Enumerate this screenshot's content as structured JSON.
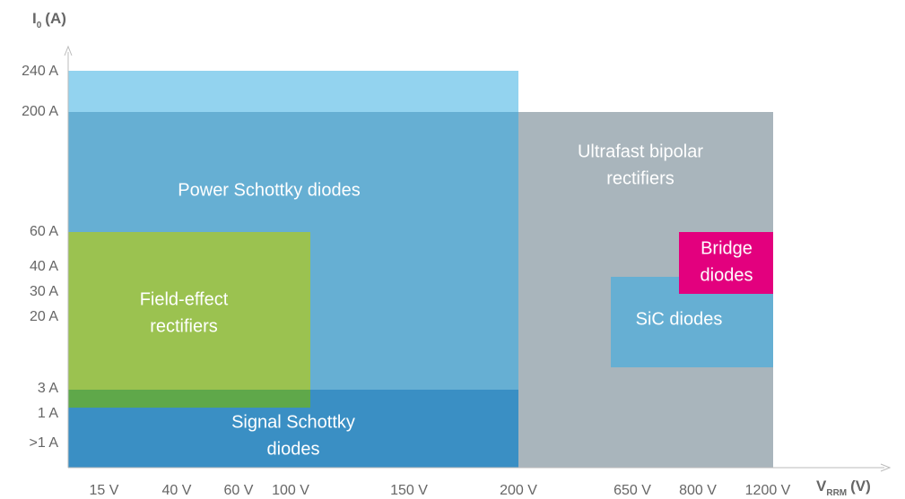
{
  "y_axis": {
    "title": "I",
    "title_sub": "0",
    "title_unit": "(A)",
    "labels": [
      "240 A",
      "200 A",
      "60 A",
      "40 A",
      "30 A",
      "20 A",
      "3 A",
      "1 A",
      ">1 A"
    ]
  },
  "x_axis": {
    "title": "V",
    "title_sub": "RRM",
    "title_unit": "(V)",
    "labels": [
      "15 V",
      "40 V",
      "60 V",
      "100 V",
      "150 V",
      "200 V",
      "650 V",
      "800 V",
      "1200 V"
    ]
  },
  "regions": [
    {
      "lines": [
        "Power Schottky diodes"
      ]
    },
    {
      "lines": [
        "Ultrafast bipolar",
        "rectifiers"
      ]
    },
    {
      "lines": [
        "Field-effect",
        "rectifiers"
      ]
    },
    {
      "lines": [
        "Signal Schottky",
        "diodes"
      ]
    },
    {
      "lines": [
        "SiC diodes"
      ]
    },
    {
      "lines": [
        "Bridge",
        "diodes"
      ]
    }
  ]
}
